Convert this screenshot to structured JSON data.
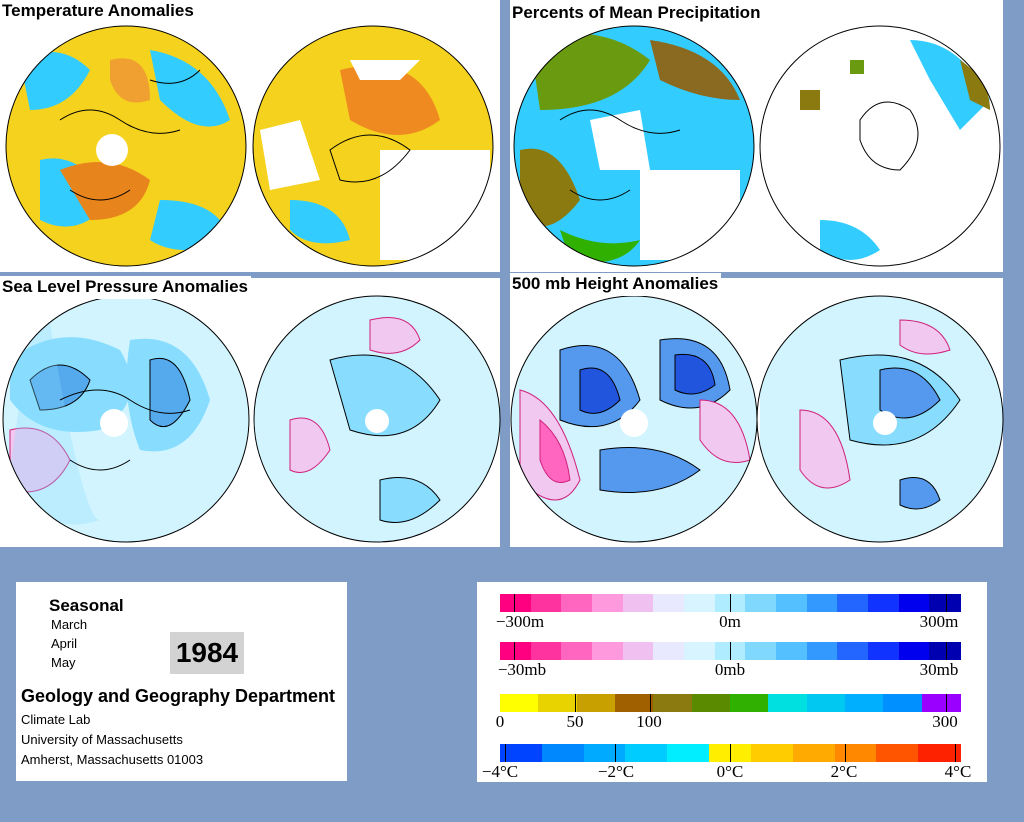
{
  "panels": {
    "temperature": {
      "title": "Temperature Anomalies"
    },
    "precipitation": {
      "title": "Percents of Mean Precipitation"
    },
    "sea_level_pressure": {
      "title": "Sea Level Pressure Anomalies"
    },
    "height_500mb": {
      "title": "500 mb Height Anomalies"
    }
  },
  "info": {
    "seasonal": "Seasonal",
    "months": [
      "March",
      "April",
      "May"
    ],
    "year": "1984",
    "department": "Geology and Geography Department",
    "lines": [
      "Climate Lab",
      "University of Massachusetts",
      "Amherst, Massachusetts 01003"
    ]
  },
  "legend": {
    "height_scale": {
      "labels": [
        "−300m",
        "0m",
        "300m"
      ],
      "colors": [
        "#ff0080",
        "#ff33a0",
        "#ff66c0",
        "#ff99dd",
        "#f0c0f0",
        "#e8e8ff",
        "#d8f4ff",
        "#b0ecff",
        "#80d8ff",
        "#55c0ff",
        "#3399ff",
        "#2266ff",
        "#1133ff",
        "#0000ee",
        "#0000b0"
      ]
    },
    "pressure_scale": {
      "labels": [
        "−30mb",
        "0mb",
        "30mb"
      ],
      "colors": [
        "#ff0080",
        "#ff33a0",
        "#ff66c0",
        "#ff99dd",
        "#f0c0f0",
        "#e8e8ff",
        "#d8f4ff",
        "#b0ecff",
        "#80d8ff",
        "#55c0ff",
        "#3399ff",
        "#2266ff",
        "#1133ff",
        "#0000ee",
        "#0000b0"
      ]
    },
    "precip_scale": {
      "labels": [
        "0",
        "50",
        "100",
        "300"
      ],
      "colors": [
        "#ffff00",
        "#e8d200",
        "#c8a000",
        "#a06000",
        "#8a7a10",
        "#5a8a00",
        "#30b000",
        "#00e0e0",
        "#00c8f0",
        "#00b0ff",
        "#0090ff",
        "#9900ff"
      ]
    },
    "temp_scale": {
      "labels": [
        "−4°C",
        "−2°C",
        "0°C",
        "2°C",
        "4°C"
      ],
      "colors": [
        "#0044ff",
        "#0088ff",
        "#00aaff",
        "#00ccff",
        "#00eeff",
        "#ffee00",
        "#ffcc00",
        "#ffaa00",
        "#ff8800",
        "#ff5500",
        "#ff2200"
      ]
    }
  }
}
